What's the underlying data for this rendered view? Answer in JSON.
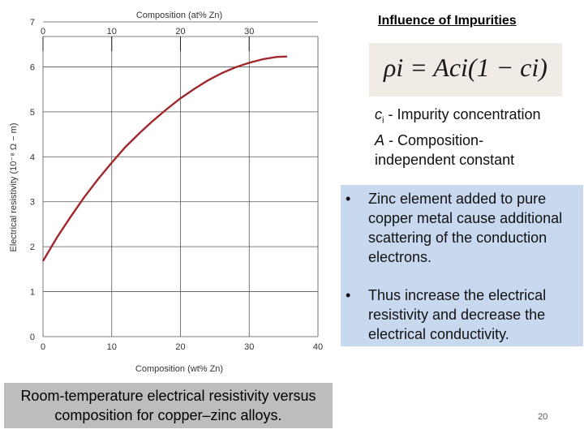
{
  "slide": {
    "title": "Influence of Impurities",
    "formula": "ρi = Aci(1 − ci)",
    "definitions": {
      "ci_symbol": "c",
      "ci_sub": "i",
      "ci_text": "- Impurity concentration",
      "a_symbol": "A",
      "a_text": "- Composition-",
      "a_text2": "independent  constant"
    },
    "bullets": [
      "Zinc element added to pure copper metal cause additional scattering of the conduction electrons.",
      "Thus increase the electrical resistivity and decrease the electrical conductivity."
    ],
    "bullet_symbol": "•",
    "caption": "Room-temperature electrical resistivity versus composition for copper–zinc alloys.",
    "page_number": "20"
  },
  "colors": {
    "curve": "#a0282d",
    "grid": "#555555",
    "info_box": "#c8d8ef",
    "caption_box": "#bdbdbd",
    "formula_box": "#f0ebe4"
  },
  "chart_data": {
    "type": "line",
    "title": "",
    "xlabel": "Composition (wt% Zn)",
    "ylabel": "Electrical resistivity (10⁻⁸ Ω − m)",
    "top_axis_label": "Composition (at% Zn)",
    "xlim": [
      0,
      40
    ],
    "ylim": [
      0,
      7
    ],
    "x_ticks": [
      "0",
      "10",
      "20",
      "30",
      "40"
    ],
    "y_ticks": [
      "0",
      "1",
      "2",
      "3",
      "4",
      "5",
      "6",
      "7"
    ],
    "top_ticks": [
      "0",
      "10",
      "20",
      "30"
    ],
    "top_tick_wt_positions": [
      0,
      10,
      20,
      30
    ],
    "grid": true,
    "series": [
      {
        "x": [
          0,
          2,
          4,
          6,
          8,
          10,
          12,
          14,
          16,
          18,
          20,
          22,
          24,
          26,
          28,
          30,
          32,
          34,
          35.5
        ],
        "y": [
          1.68,
          2.2,
          2.66,
          3.1,
          3.5,
          3.87,
          4.22,
          4.52,
          4.8,
          5.06,
          5.3,
          5.51,
          5.7,
          5.86,
          5.99,
          6.09,
          6.17,
          6.22,
          6.23
        ]
      }
    ]
  }
}
